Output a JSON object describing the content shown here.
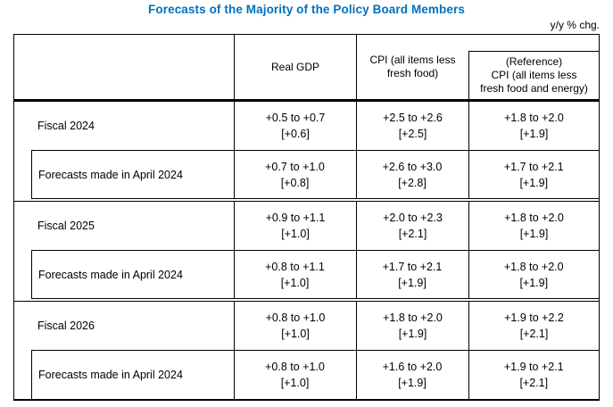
{
  "title": "Forecasts of the Majority of the Policy Board Members",
  "unit_label": "y/y % chg.",
  "colors": {
    "title_blue": "#0070C0",
    "border": "#000000",
    "text": "#000000",
    "background": "#FFFFFF"
  },
  "header": {
    "real_gdp": "Real GDP",
    "cpi_line1": "CPI (all items less",
    "cpi_line2": "fresh food)",
    "ref_line1": "(Reference)",
    "ref_line2": "CPI (all items less",
    "ref_line3": "fresh food and energy)"
  },
  "blocks": [
    {
      "fiscal_label": "Fiscal 2024",
      "fiscal": {
        "gdp_range": "+0.5 to +0.7",
        "gdp_median": "[+0.6]",
        "cpi_range": "+2.5 to +2.6",
        "cpi_median": "[+2.5]",
        "ref_range": "+1.8 to +2.0",
        "ref_median": "[+1.9]"
      },
      "april_label": "Forecasts made in April 2024",
      "april": {
        "gdp_range": "+0.7 to +1.0",
        "gdp_median": "[+0.8]",
        "cpi_range": "+2.6 to +3.0",
        "cpi_median": "[+2.8]",
        "ref_range": "+1.7 to +2.1",
        "ref_median": "[+1.9]"
      }
    },
    {
      "fiscal_label": "Fiscal 2025",
      "fiscal": {
        "gdp_range": "+0.9 to +1.1",
        "gdp_median": "[+1.0]",
        "cpi_range": "+2.0 to +2.3",
        "cpi_median": "[+2.1]",
        "ref_range": "+1.8 to +2.0",
        "ref_median": "[+1.9]"
      },
      "april_label": "Forecasts made in April 2024",
      "april": {
        "gdp_range": "+0.8 to +1.1",
        "gdp_median": "[+1.0]",
        "cpi_range": "+1.7 to +2.1",
        "cpi_median": "[+1.9]",
        "ref_range": "+1.8 to +2.0",
        "ref_median": "[+1.9]"
      }
    },
    {
      "fiscal_label": "Fiscal 2026",
      "fiscal": {
        "gdp_range": "+0.8 to +1.0",
        "gdp_median": "[+1.0]",
        "cpi_range": "+1.8 to +2.0",
        "cpi_median": "[+1.9]",
        "ref_range": "+1.9 to +2.2",
        "ref_median": "[+2.1]"
      },
      "april_label": "Forecasts made in April 2024",
      "april": {
        "gdp_range": "+0.8 to +1.0",
        "gdp_median": "[+1.0]",
        "cpi_range": "+1.6 to +2.0",
        "cpi_median": "[+1.9]",
        "ref_range": "+1.9 to +2.1",
        "ref_median": "[+2.1]"
      }
    }
  ]
}
